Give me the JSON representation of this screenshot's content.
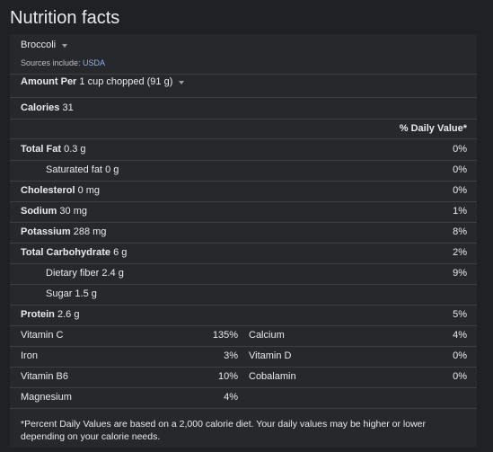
{
  "title": "Nutrition facts",
  "food": "Broccoli",
  "sources_prefix": "Sources include: ",
  "sources_link": "USDA",
  "amount_label": "Amount Per",
  "amount_value": "1 cup chopped (91 g)",
  "calories_label": "Calories",
  "calories_value": "31",
  "dv_header": "% Daily Value*",
  "nutrients": [
    {
      "label": "Total Fat",
      "value": "0.3 g",
      "pct": "0%"
    },
    {
      "label": "Saturated fat",
      "value": "0 g",
      "pct": "0%"
    },
    {
      "label": "Cholesterol",
      "value": "0 mg",
      "pct": "0%"
    },
    {
      "label": "Sodium",
      "value": "30 mg",
      "pct": "1%"
    },
    {
      "label": "Potassium",
      "value": "288 mg",
      "pct": "8%"
    },
    {
      "label": "Total Carbohydrate",
      "value": "6 g",
      "pct": "2%"
    },
    {
      "label": "Dietary fiber",
      "value": "2.4 g",
      "pct": "9%"
    },
    {
      "label": "Sugar",
      "value": "1.5 g",
      "pct": ""
    },
    {
      "label": "Protein",
      "value": "2.6 g",
      "pct": "5%"
    }
  ],
  "vitamins": [
    {
      "left": "Vitamin C",
      "left_pct": "135%",
      "right": "Calcium",
      "right_pct": "4%"
    },
    {
      "left": "Iron",
      "left_pct": "3%",
      "right": "Vitamin D",
      "right_pct": "0%"
    },
    {
      "left": "Vitamin B6",
      "left_pct": "10%",
      "right": "Cobalamin",
      "right_pct": "0%"
    },
    {
      "left": "Magnesium",
      "left_pct": "4%",
      "right": "",
      "right_pct": ""
    }
  ],
  "footnote": "*Percent Daily Values are based on a 2,000 calorie diet. Your daily values may be higher or lower depending on your calorie needs."
}
